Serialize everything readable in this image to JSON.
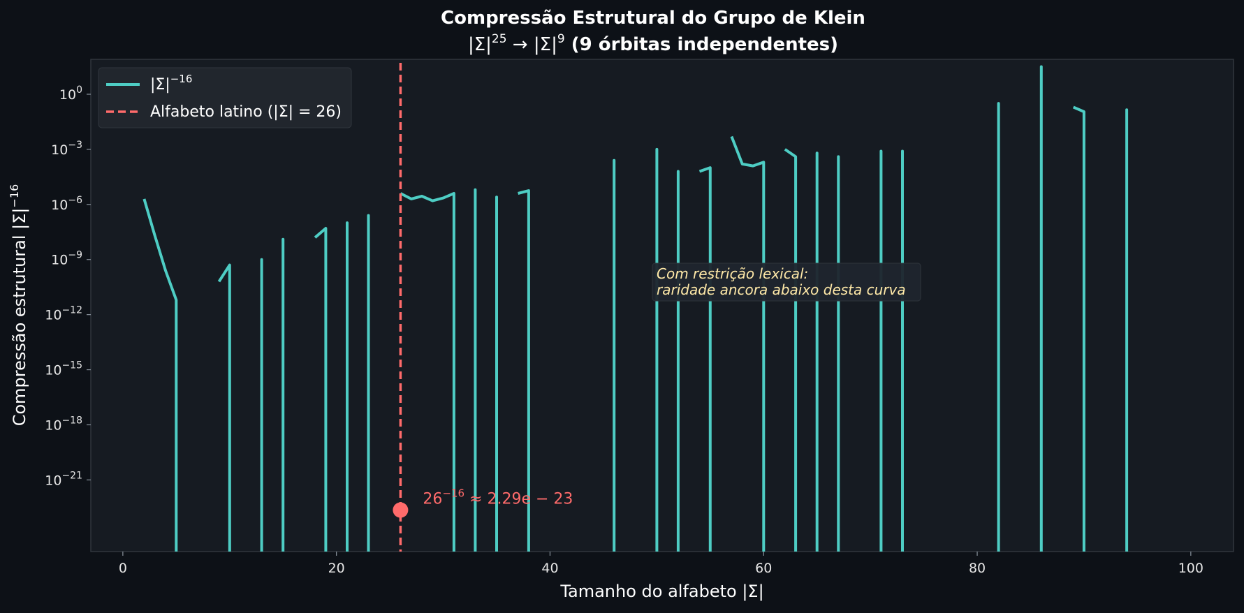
{
  "chart_data": {
    "type": "line",
    "title": "Compressão Estrutural do Grupo de Klein",
    "subtitle_prefix": "|Σ|",
    "subtitle_sup1": "25",
    "subtitle_arrow": " → ",
    "subtitle_mid": "|Σ|",
    "subtitle_sup2": "9",
    "subtitle_rest": " (9 órbitas independentes)",
    "xlabel": "Tamanho do alfabeto |Σ|",
    "ylabel_prefix": "Compressão estrutural |Σ|",
    "ylabel_sup": "−16",
    "xlim": [
      -3,
      104
    ],
    "ylim_log10": [
      -24.9,
      1.9
    ],
    "y_scale": "log",
    "grid": false,
    "legend_position": "top-left",
    "x_ticks": [
      {
        "value": 0,
        "label": "0"
      },
      {
        "value": 20,
        "label": "20"
      },
      {
        "value": 40,
        "label": "40"
      },
      {
        "value": 60,
        "label": "60"
      },
      {
        "value": 80,
        "label": "80"
      },
      {
        "value": 100,
        "label": "100"
      }
    ],
    "y_ticks": [
      {
        "exp": 0,
        "base": "10",
        "sup": "0"
      },
      {
        "exp": -3,
        "base": "10",
        "sup": "−3"
      },
      {
        "exp": -6,
        "base": "10",
        "sup": "−6"
      },
      {
        "exp": -9,
        "base": "10",
        "sup": "−9"
      },
      {
        "exp": -12,
        "base": "10",
        "sup": "−12"
      },
      {
        "exp": -15,
        "base": "10",
        "sup": "−15"
      },
      {
        "exp": -18,
        "base": "10",
        "sup": "−18"
      },
      {
        "exp": -21,
        "base": "10",
        "sup": "−21"
      }
    ],
    "series": [
      {
        "name_base": "|Σ|",
        "name_sup": "−16",
        "color": "#4ecdc4",
        "style": "solid",
        "segments": [
          [
            [
              2,
              -5.7
            ],
            [
              3,
              -7.7
            ],
            [
              4,
              -9.6
            ],
            [
              5,
              -11.2
            ]
          ],
          [
            [
              9,
              -10.2
            ],
            [
              10,
              -9.3
            ]
          ],
          [
            [
              13,
              -9.0
            ]
          ],
          [
            [
              15,
              -7.9
            ]
          ],
          [
            [
              18,
              -7.8
            ],
            [
              19,
              -7.3
            ]
          ],
          [
            [
              21,
              -7.0
            ]
          ],
          [
            [
              23,
              -6.6
            ]
          ],
          [
            [
              26,
              -5.4
            ],
            [
              27,
              -5.7
            ],
            [
              28,
              -5.55
            ],
            [
              29,
              -5.8
            ],
            [
              30,
              -5.65
            ],
            [
              31,
              -5.4
            ]
          ],
          [
            [
              33,
              -5.2
            ]
          ],
          [
            [
              35,
              -5.6
            ]
          ],
          [
            [
              37,
              -5.4
            ],
            [
              38,
              -5.25
            ]
          ],
          [
            [
              46,
              -3.6
            ]
          ],
          [
            [
              50,
              -3.0
            ]
          ],
          [
            [
              52,
              -4.2
            ]
          ],
          [
            [
              54,
              -4.2
            ],
            [
              55,
              -4.0
            ]
          ],
          [
            [
              57,
              -2.3
            ],
            [
              58,
              -3.8
            ],
            [
              59,
              -3.9
            ],
            [
              60,
              -3.7
            ]
          ],
          [
            [
              62,
              -3.0
            ],
            [
              63,
              -3.4
            ]
          ],
          [
            [
              65,
              -3.2
            ]
          ],
          [
            [
              67,
              -3.4
            ]
          ],
          [
            [
              71,
              -3.1
            ]
          ],
          [
            [
              73,
              -3.1
            ]
          ],
          [
            [
              82,
              -0.5
            ]
          ],
          [
            [
              86,
              1.5
            ]
          ],
          [
            [
              89,
              -0.7
            ],
            [
              90,
              -0.95
            ]
          ],
          [
            [
              94,
              -0.85
            ]
          ]
        ]
      },
      {
        "name": "Alfabeto latino (|Σ| = 26)",
        "color": "#ff6b6b",
        "style": "dashed",
        "x": 26
      }
    ],
    "highlight_point": {
      "x": 26,
      "log10_y": -22.64,
      "label_base": "26",
      "label_sup": "−16",
      "label_rest": " ≈ 2.29e − 23",
      "color": "#ff6b6b"
    },
    "annotation": {
      "lines": [
        "Com restrição lexical:",
        "raridade ancora abaixo desta curva"
      ]
    }
  }
}
